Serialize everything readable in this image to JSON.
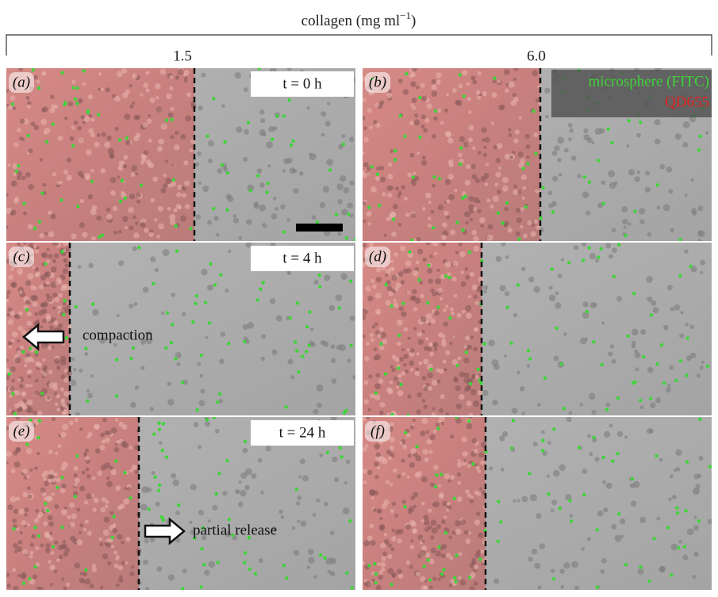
{
  "header": {
    "title_main": "collagen (mg ml",
    "title_sup": "−1",
    "title_end": ")"
  },
  "columns": [
    "1.5",
    "6.0"
  ],
  "panels": [
    {
      "label": "(a)",
      "time": "t = 0 h"
    },
    {
      "label": "(b)",
      "legend": [
        "microsphere (FITC)",
        "QD655"
      ]
    },
    {
      "label": "(c)",
      "time": "t = 4 h",
      "annotation": "compaction"
    },
    {
      "label": "(d)"
    },
    {
      "label": "(e)",
      "time": "t = 24 h",
      "annotation": "partial release"
    },
    {
      "label": "(f)"
    }
  ]
}
